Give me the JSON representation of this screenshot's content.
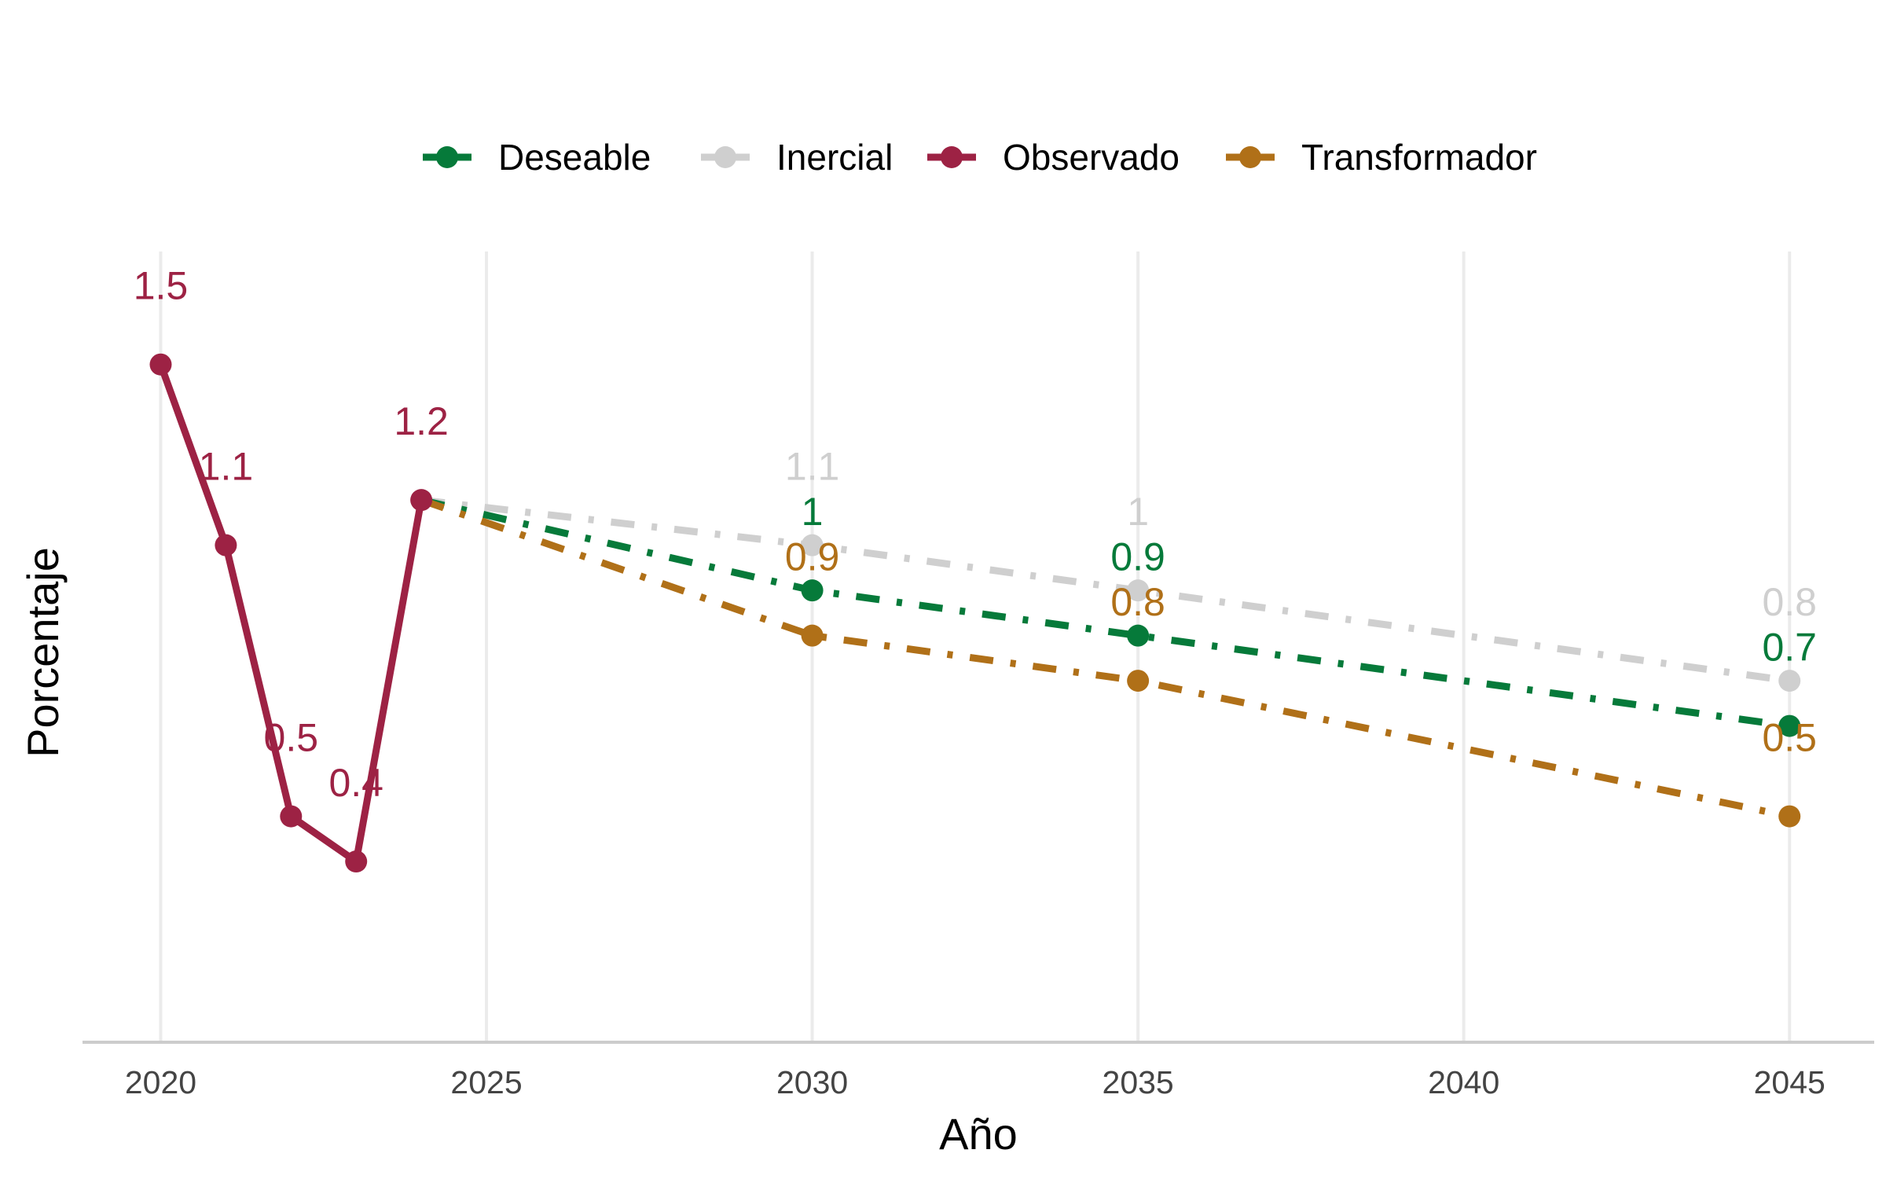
{
  "chart_data": {
    "type": "line",
    "xlabel": "Año",
    "ylabel": "Porcentaje",
    "x_ticks": [
      2020,
      2025,
      2030,
      2035,
      2040,
      2045
    ],
    "xlim": [
      2018.8,
      2046.3
    ],
    "ylim": [
      0,
      1.75
    ],
    "grid": "vertical-major",
    "legend_position": "top",
    "series": [
      {
        "name": "Deseable",
        "color": "#067A3A",
        "linestyle": "dashdot",
        "points": [
          {
            "x": 2024,
            "y": 1.2
          },
          {
            "x": 2030,
            "y": 1.0
          },
          {
            "x": 2035,
            "y": 0.9
          },
          {
            "x": 2045,
            "y": 0.7
          }
        ],
        "labels": [
          {
            "x": 2030,
            "y": 1.0,
            "text": "1"
          },
          {
            "x": 2035,
            "y": 0.9,
            "text": "0.9"
          },
          {
            "x": 2045,
            "y": 0.7,
            "text": "0.7"
          }
        ]
      },
      {
        "name": "Inercial",
        "color": "#CFCFCF",
        "linestyle": "dashdot",
        "points": [
          {
            "x": 2024,
            "y": 1.2
          },
          {
            "x": 2030,
            "y": 1.1
          },
          {
            "x": 2035,
            "y": 1.0
          },
          {
            "x": 2045,
            "y": 0.8
          }
        ],
        "labels": [
          {
            "x": 2030,
            "y": 1.1,
            "text": "1.1"
          },
          {
            "x": 2035,
            "y": 1.0,
            "text": "1"
          },
          {
            "x": 2045,
            "y": 0.8,
            "text": "0.8"
          }
        ]
      },
      {
        "name": "Observado",
        "color": "#9D2244",
        "linestyle": "solid",
        "points": [
          {
            "x": 2020,
            "y": 1.5
          },
          {
            "x": 2021,
            "y": 1.1
          },
          {
            "x": 2022,
            "y": 0.5
          },
          {
            "x": 2023,
            "y": 0.4
          },
          {
            "x": 2024,
            "y": 1.2
          }
        ],
        "labels": [
          {
            "x": 2020,
            "y": 1.5,
            "text": "1.5"
          },
          {
            "x": 2021,
            "y": 1.1,
            "text": "1.1"
          },
          {
            "x": 2022,
            "y": 0.5,
            "text": "0.5"
          },
          {
            "x": 2023,
            "y": 0.4,
            "text": "0.4"
          },
          {
            "x": 2024,
            "y": 1.2,
            "text": "1.2"
          }
        ]
      },
      {
        "name": "Transformador",
        "color": "#B07018",
        "linestyle": "dashdot",
        "points": [
          {
            "x": 2024,
            "y": 1.2
          },
          {
            "x": 2030,
            "y": 0.9
          },
          {
            "x": 2035,
            "y": 0.8
          },
          {
            "x": 2045,
            "y": 0.5
          }
        ],
        "labels": [
          {
            "x": 2030,
            "y": 0.9,
            "text": "0.9"
          },
          {
            "x": 2035,
            "y": 0.8,
            "text": "0.8"
          },
          {
            "x": 2045,
            "y": 0.5,
            "text": "0.5"
          }
        ]
      }
    ]
  }
}
